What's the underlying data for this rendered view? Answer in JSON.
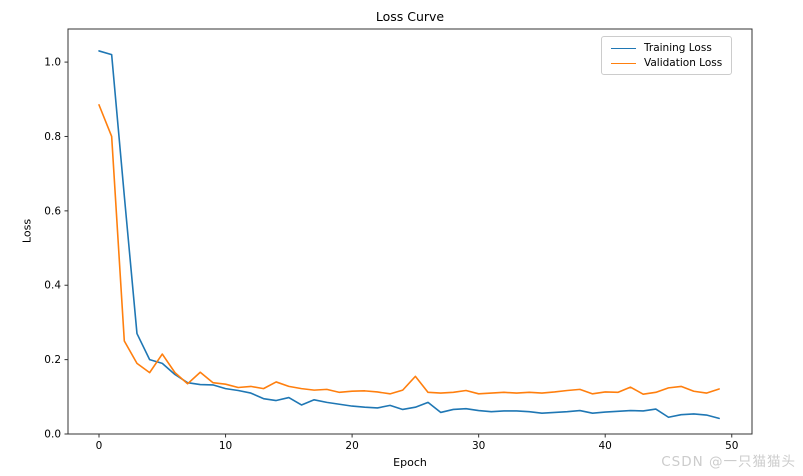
{
  "chart_data": {
    "type": "line",
    "title": "Loss Curve",
    "xlabel": "Epoch",
    "ylabel": "Loss",
    "grid": false,
    "legend_position": "upper right",
    "xlim": [
      -2.45,
      51.6
    ],
    "ylim": [
      0,
      1.089
    ],
    "xticks": [
      0,
      10,
      20,
      30,
      40,
      50
    ],
    "yticks": [
      0.0,
      0.2,
      0.4,
      0.6,
      0.8,
      1.0
    ],
    "x": [
      0,
      1,
      2,
      3,
      4,
      5,
      6,
      7,
      8,
      9,
      10,
      11,
      12,
      13,
      14,
      15,
      16,
      17,
      18,
      19,
      20,
      21,
      22,
      23,
      24,
      25,
      26,
      27,
      28,
      29,
      30,
      31,
      32,
      33,
      34,
      35,
      36,
      37,
      38,
      39,
      40,
      41,
      42,
      43,
      44,
      45,
      46,
      47,
      48,
      49
    ],
    "series": [
      {
        "name": "Training Loss",
        "color": "#1f77b4",
        "values": [
          1.03,
          1.02,
          0.64,
          0.27,
          0.2,
          0.19,
          0.16,
          0.138,
          0.133,
          0.132,
          0.122,
          0.117,
          0.11,
          0.095,
          0.09,
          0.098,
          0.078,
          0.092,
          0.085,
          0.08,
          0.075,
          0.072,
          0.07,
          0.077,
          0.066,
          0.072,
          0.085,
          0.058,
          0.066,
          0.068,
          0.063,
          0.06,
          0.062,
          0.062,
          0.06,
          0.056,
          0.058,
          0.06,
          0.063,
          0.056,
          0.059,
          0.061,
          0.063,
          0.062,
          0.067,
          0.045,
          0.052,
          0.054,
          0.051,
          0.042
        ]
      },
      {
        "name": "Validation Loss",
        "color": "#ff7f0e",
        "values": [
          0.885,
          0.8,
          0.25,
          0.19,
          0.165,
          0.215,
          0.165,
          0.135,
          0.166,
          0.138,
          0.134,
          0.125,
          0.128,
          0.122,
          0.14,
          0.128,
          0.122,
          0.118,
          0.12,
          0.112,
          0.115,
          0.116,
          0.113,
          0.108,
          0.118,
          0.155,
          0.112,
          0.11,
          0.112,
          0.117,
          0.108,
          0.11,
          0.112,
          0.11,
          0.112,
          0.11,
          0.113,
          0.117,
          0.12,
          0.108,
          0.113,
          0.112,
          0.126,
          0.107,
          0.112,
          0.124,
          0.128,
          0.115,
          0.11,
          0.121
        ]
      }
    ]
  },
  "watermark": {
    "text": "CSDN @一只猫猫头",
    "color": "#cccccc"
  },
  "style": {
    "spine_color": "#333333",
    "tick_label_color": "#000000"
  }
}
